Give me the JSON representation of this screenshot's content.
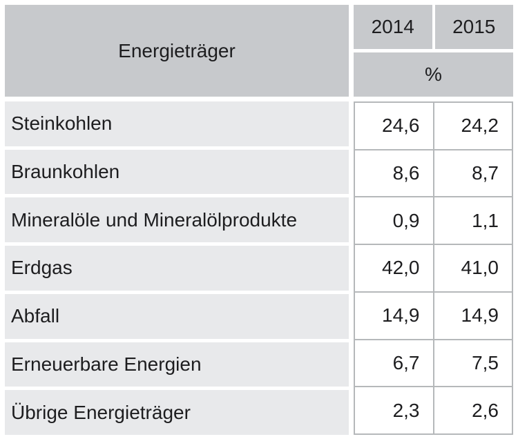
{
  "chart_data": {
    "type": "table",
    "header": {
      "label_column": "Energieträger",
      "year_columns": [
        "2014",
        "2015"
      ],
      "unit_row": "%"
    },
    "rows": [
      {
        "label": "Steinkohlen",
        "values": [
          "24,6",
          "24,2"
        ]
      },
      {
        "label": "Braunkohlen",
        "values": [
          "8,6",
          "8,7"
        ]
      },
      {
        "label": "Mineralöle und Mineralölprodukte",
        "values": [
          "0,9",
          "1,1"
        ]
      },
      {
        "label": "Erdgas",
        "values": [
          "42,0",
          "41,0"
        ]
      },
      {
        "label": "Abfall",
        "values": [
          "14,9",
          "14,9"
        ]
      },
      {
        "label": "Erneuerbare Energien",
        "values": [
          "6,7",
          "7,5"
        ]
      },
      {
        "label": "Übrige Energieträger",
        "values": [
          "2,3",
          "2,6"
        ]
      }
    ],
    "colors": {
      "header_background": "#c7c9cc",
      "row_background": "#e8e9eb",
      "grid_border": "#b5b8ba",
      "text": "#1d1d1f",
      "value_cell_background": "#ffffff"
    }
  }
}
